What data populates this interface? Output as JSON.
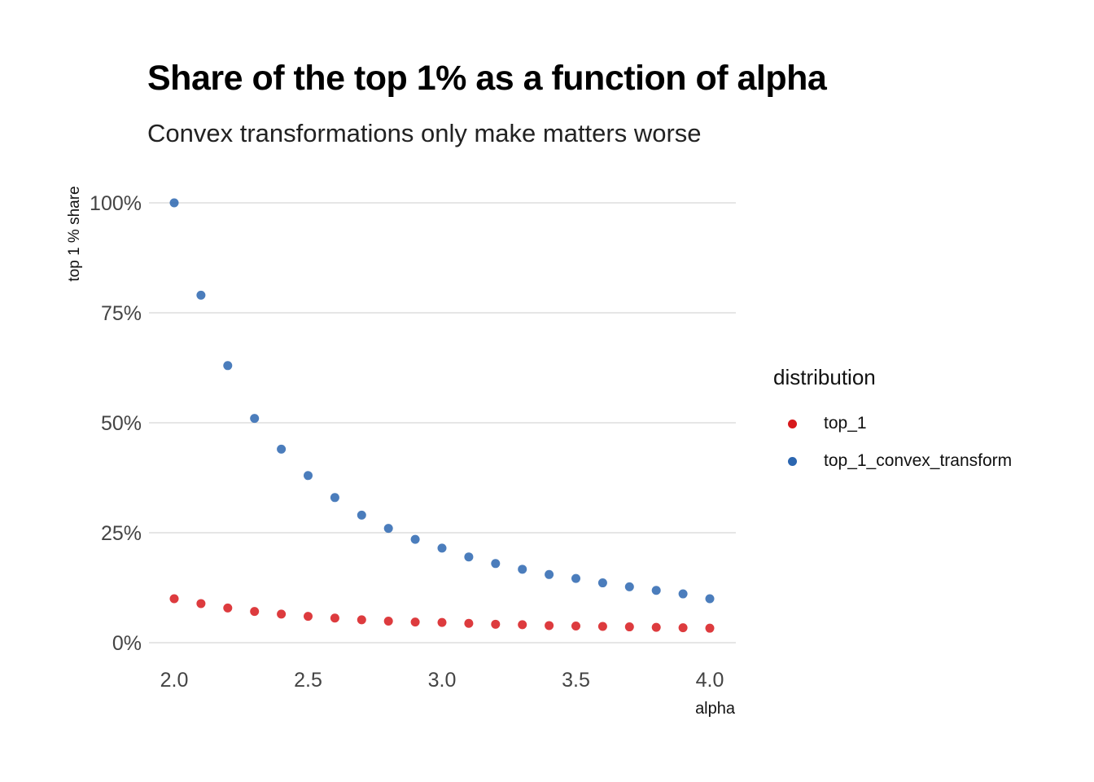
{
  "title": "Share of the top 1% as a function of alpha",
  "subtitle": "Convex transformations only make matters worse",
  "colors": {
    "top_1": "#d7191c",
    "top_1_convex_transform": "#2b66b0",
    "grid": "#cccccc"
  },
  "chart_data": {
    "type": "scatter",
    "title": "Share of the top 1% as a function of alpha",
    "subtitle": "Convex transformations only make matters worse",
    "xlabel": "alpha",
    "ylabel": "top 1 % share",
    "xlim": [
      2.0,
      4.0
    ],
    "ylim": [
      0,
      1
    ],
    "x_ticks": [
      2.0,
      2.5,
      3.0,
      3.5,
      4.0
    ],
    "x_tick_labels": [
      "2.0",
      "2.5",
      "3.0",
      "3.5",
      "4.0"
    ],
    "y_ticks": [
      0,
      0.25,
      0.5,
      0.75,
      1.0
    ],
    "y_tick_labels": [
      "0%",
      "25%",
      "50%",
      "75%",
      "100%"
    ],
    "grid": "horizontal",
    "legend": {
      "title": "distribution",
      "position": "right"
    },
    "series": [
      {
        "name": "top_1",
        "x": [
          2.0,
          2.1,
          2.2,
          2.3,
          2.4,
          2.5,
          2.6,
          2.7,
          2.8,
          2.9,
          3.0,
          3.1,
          3.2,
          3.3,
          3.4,
          3.5,
          3.6,
          3.7,
          3.8,
          3.9,
          4.0
        ],
        "y": [
          0.1,
          0.089,
          0.079,
          0.071,
          0.065,
          0.06,
          0.056,
          0.052,
          0.049,
          0.047,
          0.046,
          0.044,
          0.042,
          0.041,
          0.039,
          0.038,
          0.037,
          0.036,
          0.035,
          0.034,
          0.033
        ]
      },
      {
        "name": "top_1_convex_transform",
        "x": [
          2.0,
          2.1,
          2.2,
          2.3,
          2.4,
          2.5,
          2.6,
          2.7,
          2.8,
          2.9,
          3.0,
          3.1,
          3.2,
          3.3,
          3.4,
          3.5,
          3.6,
          3.7,
          3.8,
          3.9,
          4.0
        ],
        "y": [
          1.0,
          0.79,
          0.63,
          0.51,
          0.44,
          0.38,
          0.33,
          0.29,
          0.26,
          0.235,
          0.215,
          0.195,
          0.18,
          0.167,
          0.155,
          0.146,
          0.136,
          0.127,
          0.119,
          0.111,
          0.1
        ]
      }
    ]
  }
}
